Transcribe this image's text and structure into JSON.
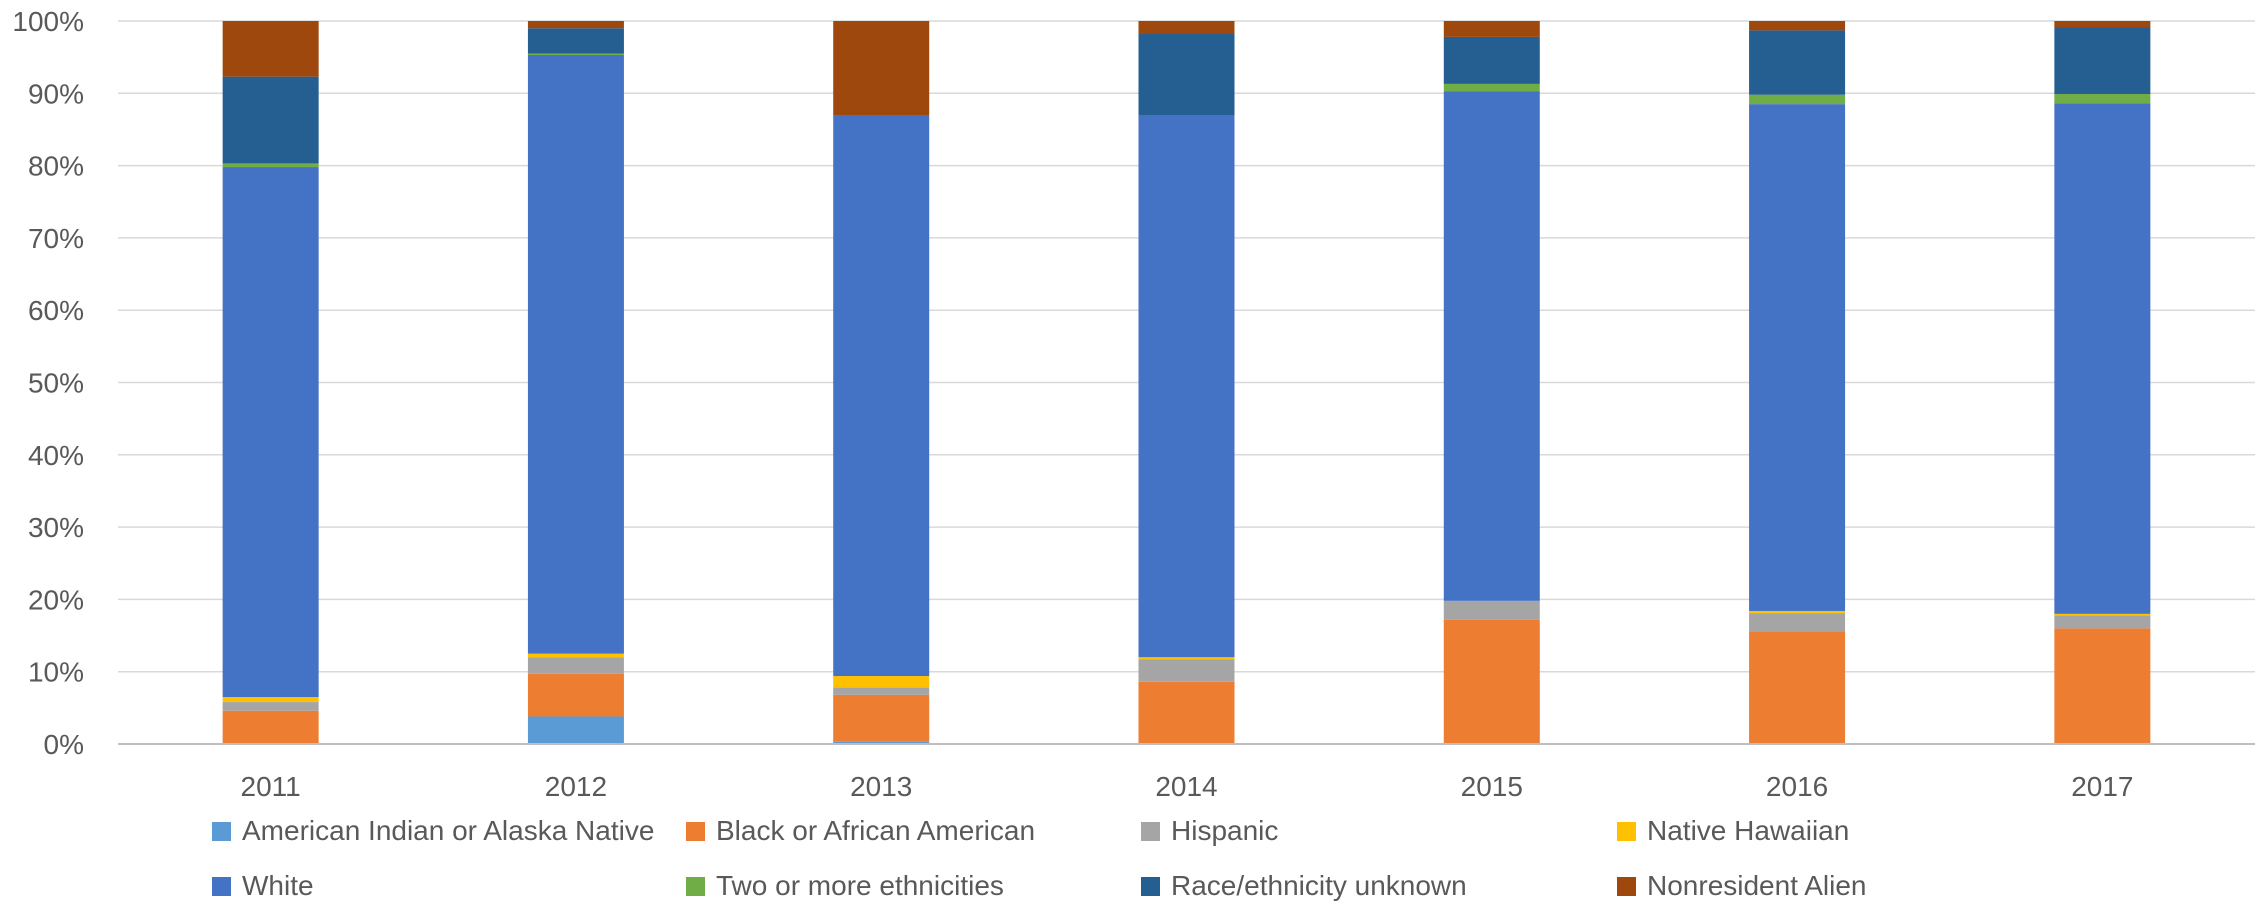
{
  "chart_data": {
    "type": "bar",
    "stacked": true,
    "categories": [
      "2011",
      "2012",
      "2013",
      "2014",
      "2015",
      "2016",
      "2017"
    ],
    "ylim": [
      0,
      100
    ],
    "y_ticks": [
      "0%",
      "10%",
      "20%",
      "30%",
      "40%",
      "50%",
      "60%",
      "70%",
      "80%",
      "90%",
      "100%"
    ],
    "grid": true,
    "legend_position": "bottom",
    "title": "",
    "xlabel": "",
    "ylabel": "",
    "series": [
      {
        "name": "American Indian or Alaska Native",
        "color": "#5B9BD5",
        "values": [
          0.0,
          3.8,
          0.3,
          0.0,
          0.0,
          0.0,
          0.0
        ]
      },
      {
        "name": "Black or African American",
        "color": "#ED7D31",
        "values": [
          4.6,
          5.9,
          6.5,
          8.6,
          17.2,
          15.6,
          16.0
        ]
      },
      {
        "name": "Hispanic",
        "color": "#A5A5A5",
        "values": [
          1.2,
          2.3,
          1.0,
          3.1,
          2.6,
          2.5,
          1.8
        ]
      },
      {
        "name": "Native Hawaiian",
        "color": "#FFC000",
        "values": [
          0.7,
          0.5,
          1.6,
          0.3,
          0.0,
          0.3,
          0.2
        ]
      },
      {
        "name": "White",
        "color": "#4472C4",
        "values": [
          73.3,
          82.8,
          77.6,
          75.0,
          70.5,
          70.1,
          70.6
        ]
      },
      {
        "name": "Two or more ethnicities",
        "color": "#70AD47",
        "values": [
          0.5,
          0.2,
          0.0,
          0.0,
          1.0,
          1.3,
          1.3
        ]
      },
      {
        "name": "Race/ethnicity unknown",
        "color": "#255E91",
        "values": [
          12.0,
          3.5,
          0.0,
          11.2,
          6.5,
          8.9,
          9.2
        ]
      },
      {
        "name": "Nonresident Alien",
        "color": "#9E480E",
        "values": [
          7.7,
          1.0,
          13.0,
          1.8,
          2.2,
          1.3,
          0.9
        ]
      }
    ]
  }
}
